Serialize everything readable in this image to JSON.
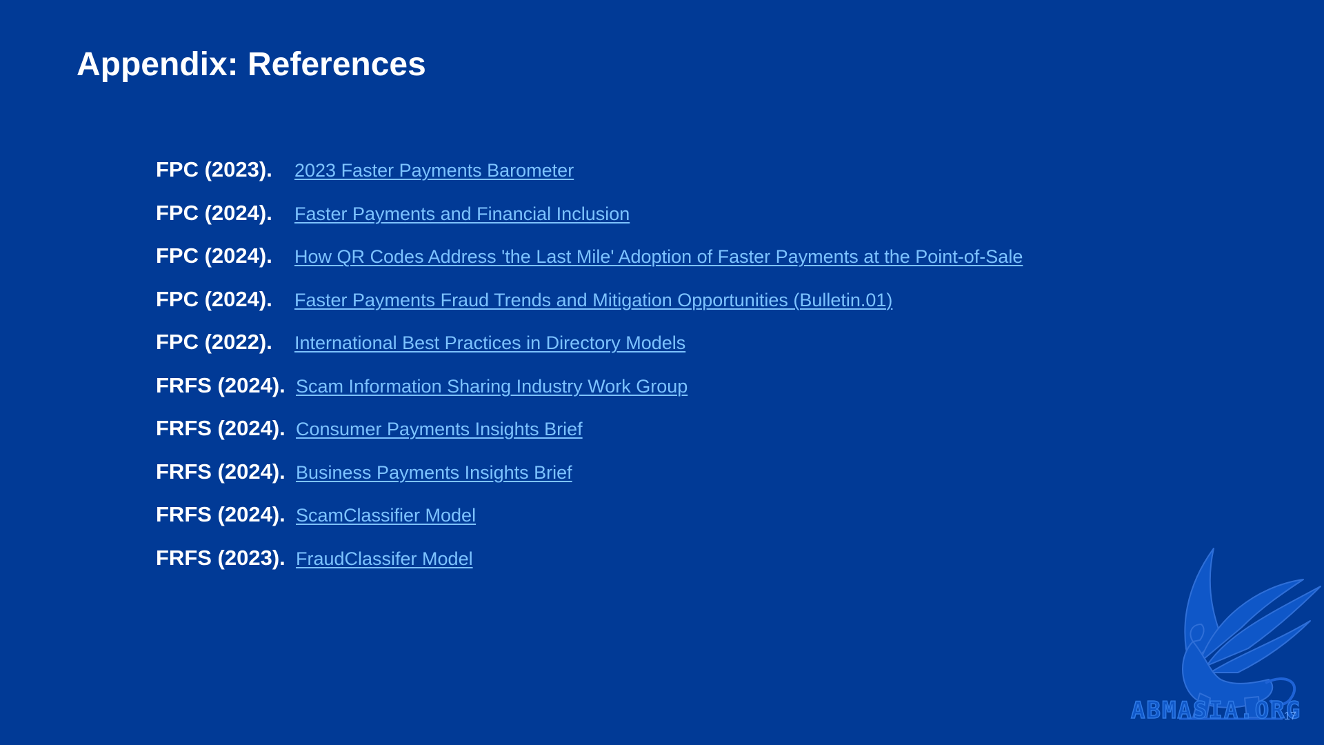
{
  "slide": {
    "title": "Appendix: References",
    "page_number": "17"
  },
  "references": [
    {
      "label": "FPC (2023).",
      "link": "2023 Faster Payments Barometer "
    },
    {
      "label": "FPC (2024).",
      "link": "Faster Payments and Financial Inclusion"
    },
    {
      "label": "FPC (2024).",
      "link": "How QR Codes Address 'the Last Mile' Adoption of Faster Payments at the Point-of-Sale"
    },
    {
      "label": "FPC (2024).",
      "link": "Faster Payments Fraud Trends and Mitigation Opportunities (Bulletin.01)"
    },
    {
      "label": "FPC (2022).",
      "link": "International Best Practices in Directory Models"
    },
    {
      "label": "FRFS (2024).",
      "link": "Scam Information Sharing Industry Work Group"
    },
    {
      "label": "FRFS (2024).",
      "link": "Consumer Payments Insights Brief"
    },
    {
      "label": "FRFS (2024).",
      "link": "Business Payments Insights Brief"
    },
    {
      "label": "FRFS (2024).",
      "link": "ScamClassifier Model"
    },
    {
      "label": "FRFS (2023).",
      "link": "FraudClassifer Model"
    }
  ],
  "watermark": {
    "text": "ABMASIA.ORG",
    "icon": "griffin-logo-icon"
  },
  "colors": {
    "background": "#013a96",
    "link": "#7dc3ff",
    "text": "#ffffff"
  }
}
